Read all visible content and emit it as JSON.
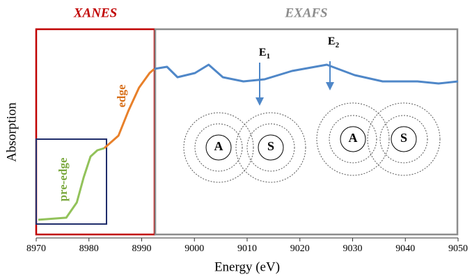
{
  "chart_data": {
    "type": "line",
    "xlabel": "Energy (eV)",
    "ylabel": "Absorption",
    "xlim": [
      8970,
      9050
    ],
    "xticks": [
      8970,
      8980,
      8990,
      9000,
      9010,
      9020,
      9030,
      9040,
      9050
    ],
    "ylim": [
      0,
      1
    ],
    "series": [
      {
        "color": "#92c25a",
        "x": [
          8970.4,
          8975.7,
          8977.7,
          8979.0,
          8980.3,
          8981.6,
          8982.9
        ],
        "values": [
          0.087,
          0.097,
          0.17,
          0.29,
          0.39,
          0.42,
          0.43
        ]
      },
      {
        "color": "#e8802a",
        "x": [
          8982.9,
          8985.6,
          8987.5,
          8989.5,
          8991.5,
          8992.4
        ],
        "values": [
          0.43,
          0.49,
          0.61,
          0.72,
          0.79,
          0.81
        ]
      },
      {
        "color": "#4f87c8",
        "x": [
          8992.4,
          8994.8,
          8996.8,
          9000.1,
          9002.7,
          9005.4,
          9009.3,
          9013.3,
          9018.5,
          9025.1,
          9030.4,
          9035.7,
          9042.3,
          9046.3,
          9050
        ],
        "values": [
          0.81,
          0.82,
          0.77,
          0.79,
          0.83,
          0.77,
          0.75,
          0.76,
          0.8,
          0.83,
          0.78,
          0.75,
          0.75,
          0.74,
          0.75
        ]
      }
    ],
    "annotations": {
      "xanes": "XANES",
      "exafs": "EXAFS",
      "pre_edge": "pre-edge",
      "edge": "edge",
      "e1": {
        "main": "E",
        "sub": "1"
      },
      "e2": {
        "main": "E",
        "sub": "2"
      },
      "atoms": [
        "A",
        "S",
        "A",
        "S"
      ]
    }
  }
}
